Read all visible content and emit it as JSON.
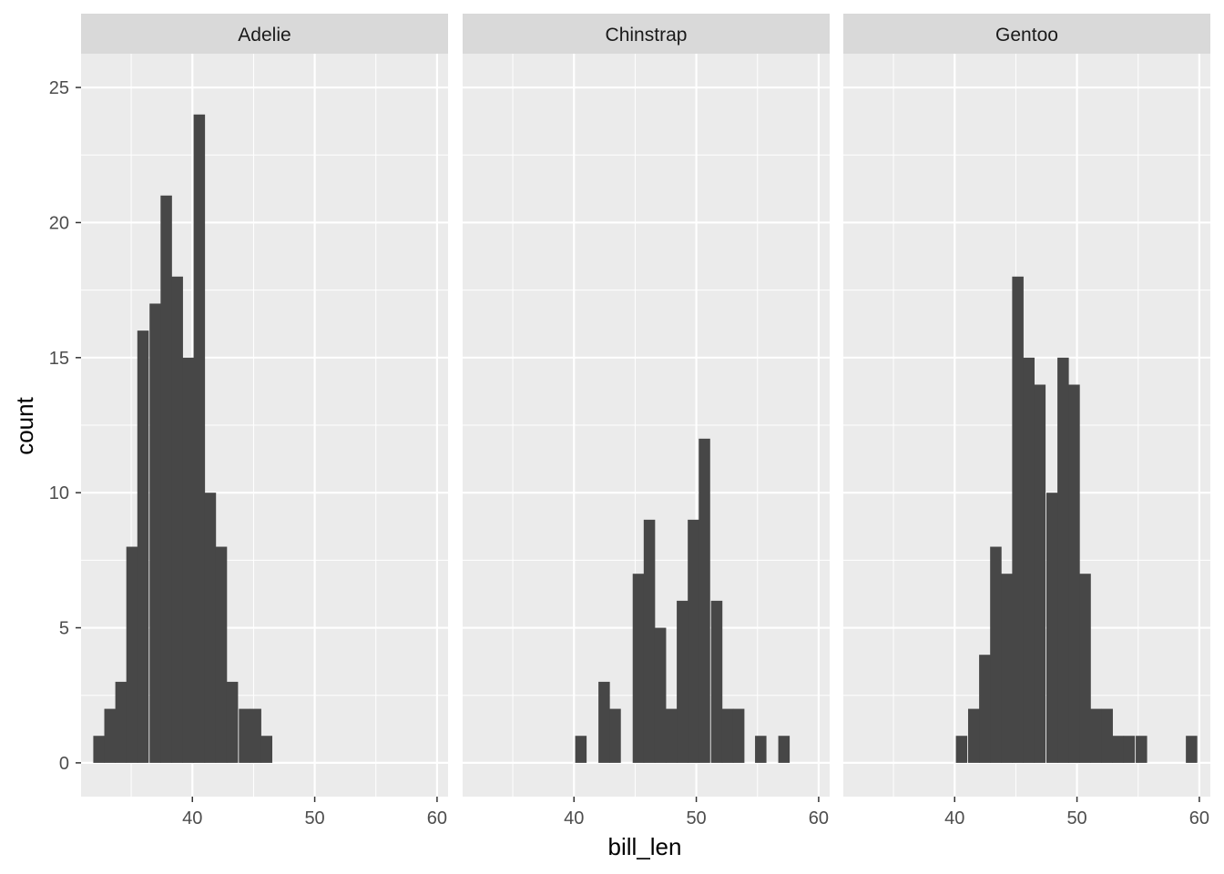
{
  "chart_data": {
    "type": "bar",
    "facet_by": "species",
    "xlabel": "bill_len",
    "ylabel": "count",
    "ylim": [
      -1.25,
      26.25
    ],
    "xlim": [
      30.9,
      60.9
    ],
    "yticks": [
      0,
      5,
      10,
      15,
      20,
      25
    ],
    "xticks": [
      40,
      50,
      60
    ],
    "bin_width": 0.91,
    "grid": true,
    "colors": {
      "bar": "#474747",
      "panel_bg": "#ebebeb",
      "strip_bg": "#d9d9d9",
      "grid": "#ffffff"
    },
    "panels": [
      {
        "label": "Adelie",
        "bins": [
          {
            "x0": 31.9,
            "count": 1
          },
          {
            "x0": 32.8,
            "count": 2
          },
          {
            "x0": 33.7,
            "count": 3
          },
          {
            "x0": 34.6,
            "count": 8
          },
          {
            "x0": 35.5,
            "count": 16
          },
          {
            "x0": 36.5,
            "count": 17
          },
          {
            "x0": 37.4,
            "count": 21
          },
          {
            "x0": 38.3,
            "count": 18
          },
          {
            "x0": 39.2,
            "count": 15
          },
          {
            "x0": 40.1,
            "count": 24
          },
          {
            "x0": 41.0,
            "count": 10
          },
          {
            "x0": 41.9,
            "count": 8
          },
          {
            "x0": 42.8,
            "count": 3
          },
          {
            "x0": 43.8,
            "count": 2
          },
          {
            "x0": 44.7,
            "count": 2
          },
          {
            "x0": 45.6,
            "count": 1
          }
        ]
      },
      {
        "label": "Chinstrap",
        "bins": [
          {
            "x0": 40.1,
            "count": 1
          },
          {
            "x0": 42.0,
            "count": 3
          },
          {
            "x0": 42.9,
            "count": 2
          },
          {
            "x0": 44.8,
            "count": 7
          },
          {
            "x0": 45.7,
            "count": 9
          },
          {
            "x0": 46.6,
            "count": 5
          },
          {
            "x0": 47.5,
            "count": 2
          },
          {
            "x0": 48.4,
            "count": 6
          },
          {
            "x0": 49.3,
            "count": 9
          },
          {
            "x0": 50.2,
            "count": 12
          },
          {
            "x0": 51.2,
            "count": 6
          },
          {
            "x0": 52.1,
            "count": 2
          },
          {
            "x0": 53.0,
            "count": 2
          },
          {
            "x0": 54.8,
            "count": 1
          },
          {
            "x0": 56.7,
            "count": 1
          }
        ]
      },
      {
        "label": "Gentoo",
        "bins": [
          {
            "x0": 40.1,
            "count": 1
          },
          {
            "x0": 41.1,
            "count": 2
          },
          {
            "x0": 42.0,
            "count": 4
          },
          {
            "x0": 42.9,
            "count": 8
          },
          {
            "x0": 43.8,
            "count": 7
          },
          {
            "x0": 44.7,
            "count": 18
          },
          {
            "x0": 45.6,
            "count": 15
          },
          {
            "x0": 46.5,
            "count": 14
          },
          {
            "x0": 47.5,
            "count": 10
          },
          {
            "x0": 48.4,
            "count": 15
          },
          {
            "x0": 49.3,
            "count": 14
          },
          {
            "x0": 50.2,
            "count": 7
          },
          {
            "x0": 51.1,
            "count": 2
          },
          {
            "x0": 52.0,
            "count": 2
          },
          {
            "x0": 52.9,
            "count": 1
          },
          {
            "x0": 53.8,
            "count": 1
          },
          {
            "x0": 54.8,
            "count": 1
          },
          {
            "x0": 58.9,
            "count": 1
          }
        ]
      }
    ]
  }
}
